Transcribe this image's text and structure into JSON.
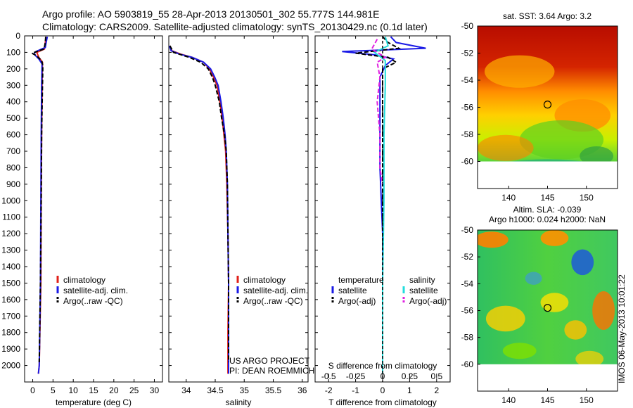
{
  "header": {
    "line1": "Argo profile: AO 5903819_55 28-Apr-2013 20130501_302 55.777S 144.981E",
    "line2": "Climatology: CARS2009. Satellite-adjusted climatology: synTS_20130429.nc (0.1d later)"
  },
  "colors": {
    "red": "#e0201a",
    "blue": "#1a1ae6",
    "black": "#000000",
    "cyan": "#22dddd",
    "magenta": "#e020e0"
  },
  "chart_data": [
    {
      "type": "line",
      "id": "temperature",
      "xlabel": "temperature (deg C)",
      "xlim": [
        -2,
        32
      ],
      "xticks": [
        0,
        5,
        10,
        15,
        20,
        25,
        30
      ],
      "ylim": [
        0,
        2100
      ],
      "yticks": [
        0,
        100,
        200,
        300,
        400,
        500,
        600,
        700,
        800,
        900,
        1000,
        1100,
        1200,
        1300,
        1400,
        1500,
        1600,
        1700,
        1800,
        1900,
        2000
      ],
      "legend": [
        "climatology",
        "satellite-adj. clim.",
        "Argo(..raw -QC)"
      ],
      "series": [
        {
          "name": "climatology",
          "color": "red",
          "dash": "",
          "points": [
            [
              3.3,
              5
            ],
            [
              3.1,
              40
            ],
            [
              2.9,
              80
            ],
            [
              1.0,
              100
            ],
            [
              1.5,
              130
            ],
            [
              2.4,
              160
            ],
            [
              2.3,
              300
            ],
            [
              2.2,
              600
            ],
            [
              2.1,
              1000
            ],
            [
              2.0,
              1500
            ],
            [
              1.6,
              2000
            ],
            [
              1.4,
              2050
            ]
          ]
        },
        {
          "name": "satellite-adj. clim.",
          "color": "blue",
          "dash": "",
          "points": [
            [
              3.6,
              5
            ],
            [
              3.3,
              40
            ],
            [
              3.1,
              70
            ],
            [
              0.8,
              95
            ],
            [
              0.3,
              110
            ],
            [
              1.5,
              140
            ],
            [
              2.3,
              170
            ],
            [
              2.2,
              300
            ],
            [
              2.1,
              600
            ],
            [
              2.0,
              1000
            ],
            [
              1.9,
              1500
            ],
            [
              1.6,
              2000
            ],
            [
              1.4,
              2050
            ]
          ]
        },
        {
          "name": "Argo(..raw -QC)",
          "color": "black",
          "dash": "6,3",
          "points": [
            [
              3.2,
              5
            ],
            [
              3.1,
              40
            ],
            [
              2.8,
              80
            ],
            [
              -0.2,
              105
            ],
            [
              0.9,
              120
            ],
            [
              2.2,
              150
            ],
            [
              2.5,
              180
            ],
            [
              2.4,
              300
            ],
            [
              2.2,
              600
            ],
            [
              2.1,
              1000
            ],
            [
              1.9,
              1500
            ],
            [
              1.6,
              1980
            ]
          ]
        }
      ]
    },
    {
      "type": "line",
      "id": "salinity",
      "xlabel": "salinity",
      "xlim": [
        33.7,
        36.1
      ],
      "xticks": [
        34,
        34.5,
        35,
        35.5,
        36
      ],
      "ylim": [
        0,
        2100
      ],
      "legend": [
        "climatology",
        "satellite-adj. clim.",
        "Argo(..raw -QC)"
      ],
      "annotation": [
        "US ARGO PROJECT",
        "PI: DEAN ROEMMICH"
      ],
      "series": [
        {
          "name": "climatology",
          "color": "red",
          "dash": "",
          "points": [
            [
              33.72,
              60
            ],
            [
              33.75,
              90
            ],
            [
              33.9,
              110
            ],
            [
              34.1,
              130
            ],
            [
              34.3,
              160
            ],
            [
              34.4,
              200
            ],
            [
              34.47,
              250
            ],
            [
              34.53,
              300
            ],
            [
              34.58,
              400
            ],
            [
              34.62,
              500
            ],
            [
              34.65,
              600
            ],
            [
              34.68,
              700
            ],
            [
              34.7,
              900
            ],
            [
              34.72,
              1200
            ],
            [
              34.73,
              1500
            ],
            [
              34.72,
              1800
            ],
            [
              34.72,
              2050
            ]
          ]
        },
        {
          "name": "satellite-adj. clim.",
          "color": "blue",
          "dash": "",
          "points": [
            [
              33.71,
              60
            ],
            [
              33.74,
              90
            ],
            [
              33.88,
              110
            ],
            [
              34.1,
              130
            ],
            [
              34.3,
              160
            ],
            [
              34.42,
              200
            ],
            [
              34.49,
              250
            ],
            [
              34.55,
              300
            ],
            [
              34.6,
              400
            ],
            [
              34.64,
              500
            ],
            [
              34.67,
              600
            ],
            [
              34.69,
              700
            ],
            [
              34.71,
              900
            ],
            [
              34.72,
              1200
            ],
            [
              34.73,
              1500
            ],
            [
              34.73,
              1800
            ],
            [
              34.73,
              2050
            ]
          ]
        },
        {
          "name": "Argo(..raw -QC)",
          "color": "black",
          "dash": "6,3",
          "points": [
            [
              33.72,
              60
            ],
            [
              33.78,
              100
            ],
            [
              34.05,
              130
            ],
            [
              34.25,
              160
            ],
            [
              34.38,
              200
            ],
            [
              34.45,
              250
            ],
            [
              34.5,
              300
            ],
            [
              34.57,
              400
            ],
            [
              34.61,
              500
            ],
            [
              34.66,
              600
            ],
            [
              34.69,
              700
            ],
            [
              34.71,
              900
            ],
            [
              34.72,
              1200
            ],
            [
              34.73,
              1500
            ],
            [
              34.73,
              1800
            ],
            [
              34.73,
              1980
            ]
          ]
        }
      ]
    },
    {
      "type": "line",
      "id": "difference",
      "xlabel": "T difference from climatology",
      "xlabel_top": "S difference from climatology",
      "xlim": [
        -2.5,
        2.5
      ],
      "xticks": [
        -2,
        -1,
        0,
        1,
        2
      ],
      "s_ticks": [
        {
          "label": "-0.5",
          "t": -2
        },
        {
          "label": "-0.25",
          "t": -1
        },
        {
          "label": "0",
          "t": 0
        },
        {
          "label": "0.25",
          "t": 1
        },
        {
          "label": "0.5",
          "t": 2
        }
      ],
      "ylim": [
        0,
        2100
      ],
      "legend_left": {
        "head": "temperature",
        "items": [
          "satellite",
          "Argo(-adj)"
        ]
      },
      "legend_right": {
        "head": "salinity",
        "items": [
          "satellite",
          "Argo(-adj)"
        ]
      },
      "series": [
        {
          "name": "T satellite",
          "color": "blue",
          "dash": "",
          "points": [
            [
              0.3,
              5
            ],
            [
              0.5,
              40
            ],
            [
              1.6,
              75
            ],
            [
              -1.5,
              95
            ],
            [
              -0.3,
              115
            ],
            [
              0.4,
              140
            ],
            [
              0.1,
              180
            ],
            [
              -0.1,
              250
            ],
            [
              -0.1,
              500
            ],
            [
              -0.1,
              800
            ],
            [
              0,
              1200
            ],
            [
              0,
              2050
            ]
          ]
        },
        {
          "name": "T Argo(-adj)",
          "color": "black",
          "dash": "6,3",
          "points": [
            [
              0,
              5
            ],
            [
              0.2,
              40
            ],
            [
              0.6,
              75
            ],
            [
              -1.0,
              105
            ],
            [
              0.2,
              130
            ],
            [
              0.5,
              160
            ],
            [
              0,
              200
            ],
            [
              0,
              500
            ],
            [
              0,
              1000
            ],
            [
              0,
              2050
            ]
          ]
        },
        {
          "name": "S satellite",
          "color": "cyan",
          "dash": "",
          "points": [
            [
              0.1,
              5
            ],
            [
              0.2,
              60
            ],
            [
              -0.3,
              100
            ],
            [
              0.1,
              150
            ],
            [
              0.1,
              300
            ],
            [
              0.05,
              600
            ],
            [
              0.05,
              1000
            ],
            [
              0,
              1500
            ],
            [
              0,
              2050
            ]
          ]
        },
        {
          "name": "S Argo(-adj)",
          "color": "magenta",
          "dash": "6,3",
          "points": [
            [
              -0.2,
              20
            ],
            [
              -0.4,
              80
            ],
            [
              0.1,
              130
            ],
            [
              -0.2,
              160
            ],
            [
              -0.1,
              250
            ],
            [
              -0.2,
              400
            ],
            [
              -0.1,
              600
            ],
            [
              -0.1,
              800
            ],
            [
              0,
              900
            ]
          ]
        }
      ]
    },
    {
      "type": "heatmap",
      "id": "sst-map",
      "title": "sat. SST: 3.64  Argo: 3.2",
      "xticks": [
        140,
        145,
        150
      ],
      "yticks": [
        -50,
        -52,
        -54,
        -56,
        -58,
        -60
      ],
      "xlim": [
        136,
        154
      ],
      "ylim": [
        -62,
        -50
      ],
      "marker": [
        145,
        -55.8
      ]
    },
    {
      "type": "heatmap",
      "id": "sla-map",
      "title": [
        "Altim. SLA: -0.039",
        "Argo h1000: 0.024 h2000: NaN"
      ],
      "xticks": [
        140,
        145,
        150
      ],
      "yticks": [
        -50,
        -52,
        -54,
        -56,
        -58,
        -60
      ],
      "xlim": [
        136,
        154
      ],
      "ylim": [
        -62,
        -50
      ],
      "marker": [
        145,
        -55.8
      ]
    }
  ],
  "stamp": "IMOS 06-May-2013 10:01:22"
}
